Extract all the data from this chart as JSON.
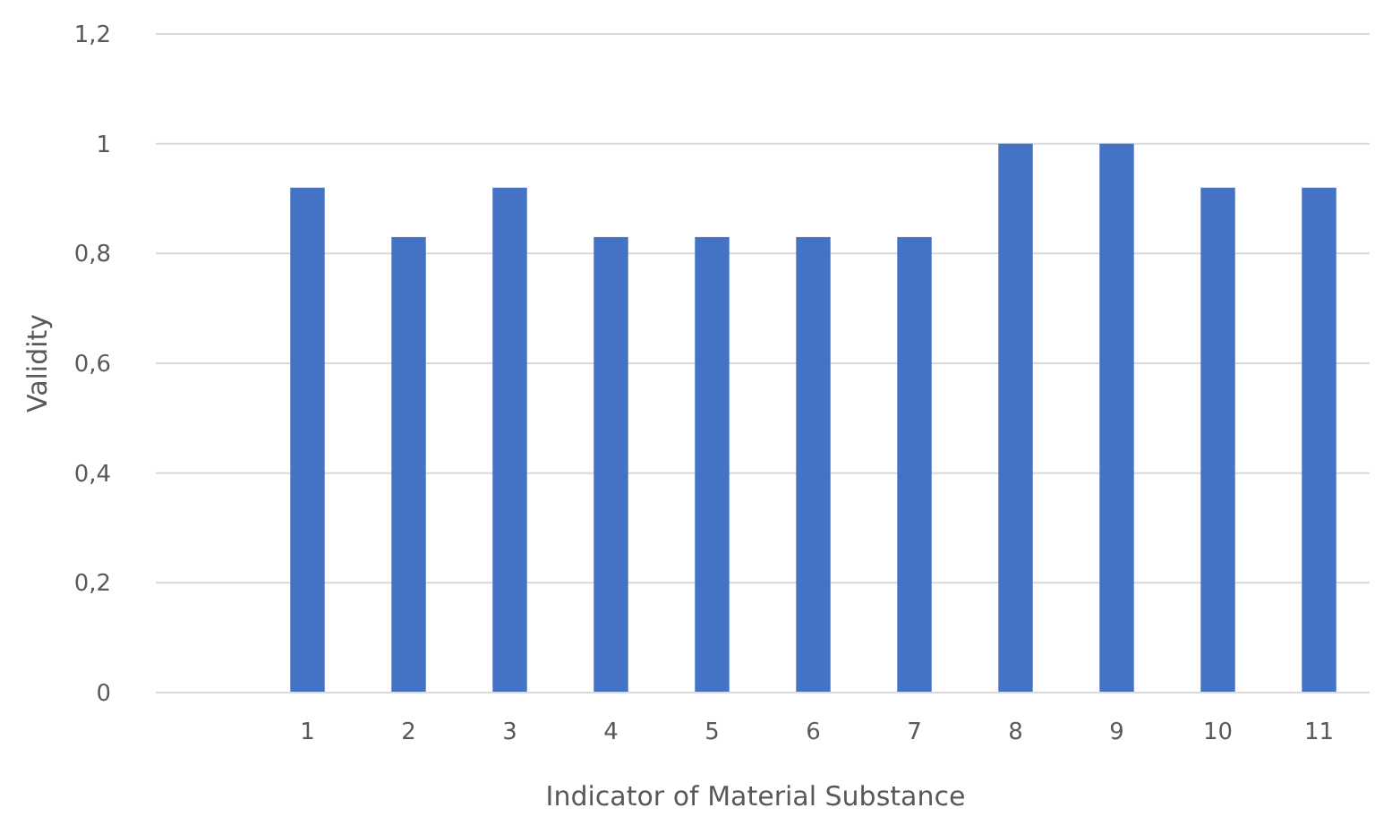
{
  "chart_data": {
    "type": "bar",
    "xlabel": "Indicator of Material Substance",
    "ylabel": "Validity",
    "categories": [
      null,
      "1",
      "2",
      "3",
      "4",
      "5",
      "6",
      "7",
      "8",
      "9",
      "10",
      "11"
    ],
    "values": [
      null,
      0.92,
      0.83,
      0.92,
      0.83,
      0.83,
      0.83,
      0.83,
      1,
      1,
      0.92,
      0.92
    ],
    "color": "#4472c4",
    "ylim": [
      0,
      1.2
    ],
    "yticks": [
      0,
      {
        "value": 0.2,
        "label": "0,2"
      },
      {
        "value": 0.4,
        "label": "0,4"
      },
      {
        "value": 0.6,
        "label": "0,6"
      },
      {
        "value": 0.8,
        "label": "0,8"
      },
      1,
      {
        "value": 1.2,
        "label": "1,2"
      }
    ],
    "grid": "y"
  }
}
